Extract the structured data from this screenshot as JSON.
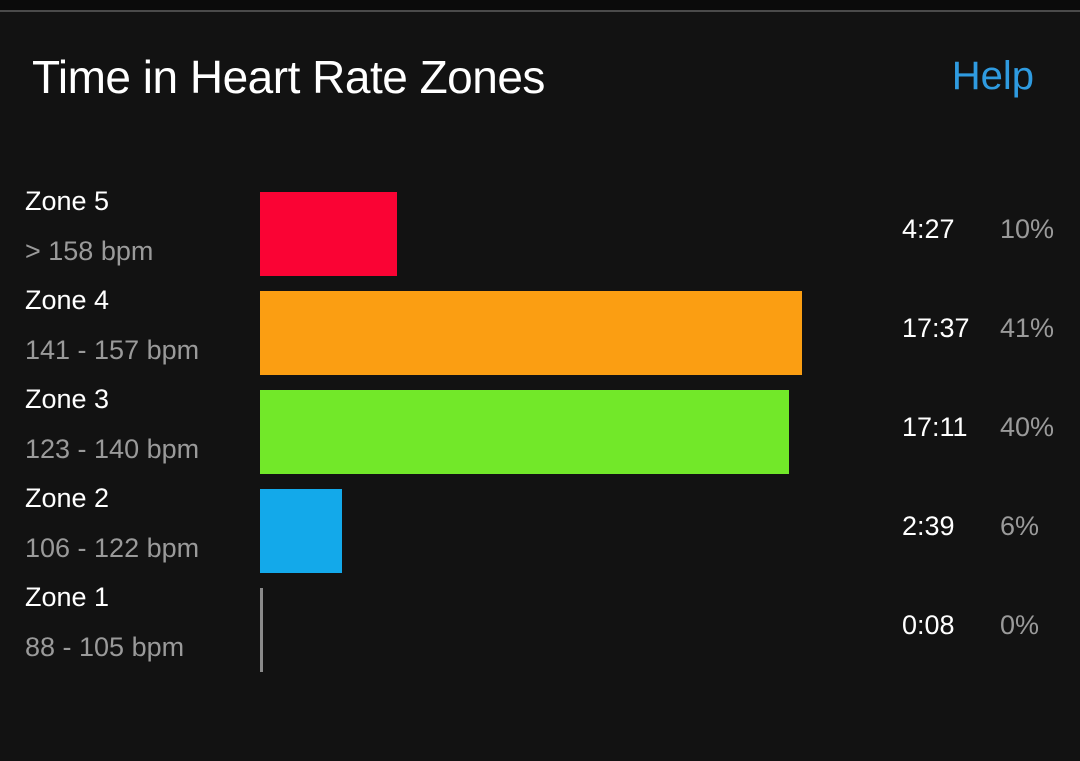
{
  "header": {
    "title": "Time in Heart Rate Zones",
    "help_label": "Help"
  },
  "chart_data": {
    "type": "bar",
    "orientation": "horizontal",
    "title": "Time in Heart Rate Zones",
    "categories": [
      "Zone 5",
      "Zone 4",
      "Zone 3",
      "Zone 2",
      "Zone 1"
    ],
    "ranges": [
      "> 158 bpm",
      "141 - 157 bpm",
      "123 - 140 bpm",
      "106 - 122 bpm",
      "88 - 105 bpm"
    ],
    "times": [
      "4:27",
      "17:37",
      "17:11",
      "2:39",
      "0:08"
    ],
    "percents": [
      "10%",
      "41%",
      "40%",
      "6%",
      "0%"
    ],
    "values": [
      10,
      41,
      40,
      6,
      0
    ],
    "colors": [
      "#fa0334",
      "#fb9e12",
      "#72e829",
      "#13a9ea",
      "#8a8a8a"
    ],
    "grid": false,
    "legend": "none"
  }
}
